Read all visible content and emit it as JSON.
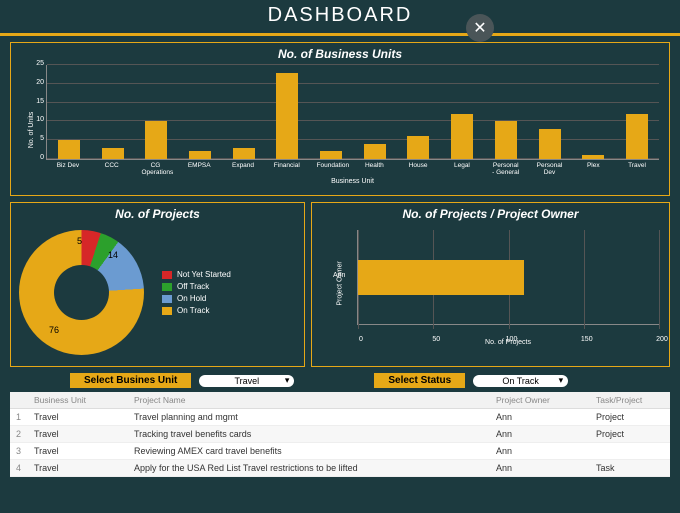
{
  "header": {
    "title": "DASHBOARD"
  },
  "colors": {
    "accent": "#e6a817",
    "background": "#1c3a3f",
    "grid": "#555555"
  },
  "bar_chart": {
    "type": "bar",
    "title": "No. of Business Units",
    "ylabel": "No. of Units",
    "xlabel": "Business Unit",
    "ylim": [
      0,
      25
    ],
    "ytick_step": 5,
    "bar_color": "#e6a817",
    "categories": [
      "Biz Dev",
      "CCC",
      "CG Operations",
      "EMPSA",
      "Expand",
      "Financial",
      "Foundation",
      "Health",
      "House",
      "Legal",
      "Personal - General",
      "Personal Dev",
      "Plex",
      "Travel"
    ],
    "values": [
      5,
      3,
      10,
      2,
      3,
      23,
      2,
      4,
      6,
      12,
      10,
      8,
      1,
      12
    ]
  },
  "donut_chart": {
    "type": "donut",
    "title": "No. of Projects",
    "segments": [
      {
        "label": "Not Yet Started",
        "value": 5,
        "color": "#d62728"
      },
      {
        "label": "Off Track",
        "value": 5,
        "color": "#2ca02c"
      },
      {
        "label": "On Hold",
        "value": 14,
        "color": "#6b9bd1"
      },
      {
        "label": "On Track",
        "value": 76,
        "color": "#e6a817"
      }
    ]
  },
  "hbar_chart": {
    "type": "bar-horizontal",
    "title": "No. of Projects / Project Owner",
    "ylabel": "Project Owner",
    "xlabel": "No. of Projects",
    "xlim": [
      0,
      200
    ],
    "xtick_step": 50,
    "bar_color": "#e6a817",
    "categories": [
      "Ann"
    ],
    "values": [
      110
    ]
  },
  "selectors": {
    "unit": {
      "label": "Select Busines Unit",
      "value": "Travel"
    },
    "status": {
      "label": "Select Status",
      "value": "On Track"
    }
  },
  "table": {
    "columns": [
      "",
      "Business Unit",
      "Project Name",
      "Project Owner",
      "Task/Project"
    ],
    "rows": [
      [
        "1",
        "Travel",
        "Travel planning and mgmt",
        "Ann",
        "Project"
      ],
      [
        "2",
        "Travel",
        "Tracking travel benefits cards",
        "Ann",
        "Project"
      ],
      [
        "3",
        "Travel",
        "Reviewing AMEX card travel benefits",
        "Ann",
        ""
      ],
      [
        "4",
        "Travel",
        "Apply for the USA Red List Travel restrictions to be lifted",
        "Ann",
        "Task"
      ]
    ]
  }
}
